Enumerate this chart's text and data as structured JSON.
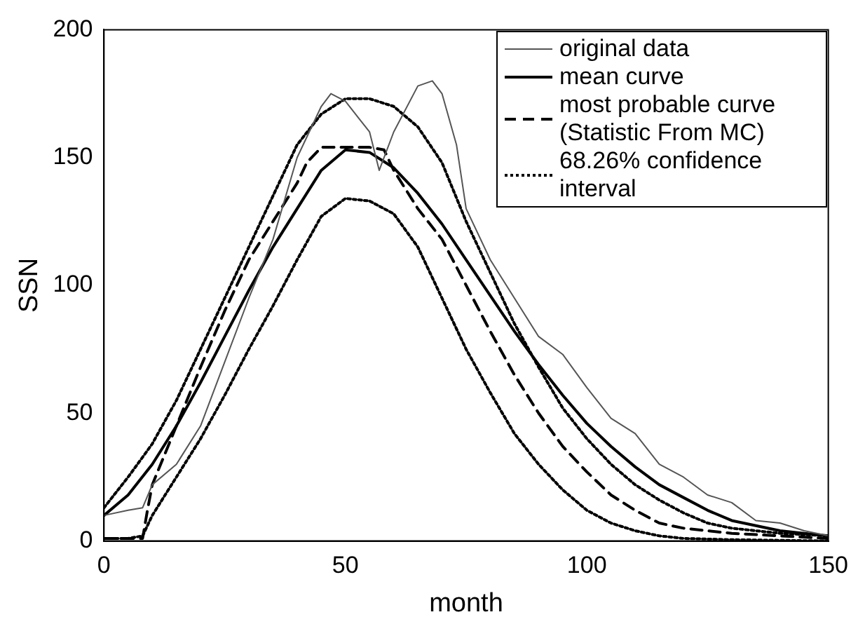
{
  "chart_data": {
    "type": "line",
    "xlabel": "month",
    "ylabel": "SSN",
    "xlim": [
      0,
      150
    ],
    "ylim": [
      0,
      200
    ],
    "xticks": [
      0,
      50,
      100,
      150
    ],
    "yticks": [
      0,
      50,
      100,
      150,
      200
    ],
    "grid": false,
    "legend": "top right",
    "marker": "none",
    "series": [
      {
        "name": "original data",
        "color": "#555555",
        "line_style": "solid",
        "x": [
          0,
          5,
          8,
          10,
          15,
          20,
          25,
          30,
          35,
          40,
          45,
          47,
          50,
          55,
          57,
          60,
          65,
          68,
          70,
          73,
          75,
          80,
          85,
          90,
          95,
          100,
          105,
          110,
          115,
          120,
          125,
          130,
          135,
          140,
          145,
          150
        ],
        "values": [
          10,
          12,
          13,
          22,
          30,
          45,
          70,
          95,
          118,
          150,
          170,
          175,
          172,
          160,
          145,
          160,
          178,
          180,
          175,
          155,
          130,
          110,
          95,
          80,
          73,
          60,
          48,
          42,
          30,
          25,
          18,
          15,
          8,
          7,
          4,
          2
        ]
      },
      {
        "name": "mean curve",
        "color": "#000000",
        "line_style": "solid",
        "x": [
          0,
          5,
          10,
          15,
          20,
          25,
          30,
          35,
          40,
          45,
          50,
          55,
          60,
          65,
          70,
          75,
          80,
          85,
          90,
          95,
          100,
          105,
          110,
          115,
          120,
          125,
          130,
          135,
          140,
          145,
          150
        ],
        "values": [
          10,
          18,
          30,
          45,
          62,
          80,
          98,
          115,
          130,
          145,
          153,
          152,
          146,
          136,
          124,
          110,
          96,
          82,
          69,
          57,
          46,
          37,
          29,
          22,
          17,
          12,
          8,
          6,
          4,
          3,
          2
        ]
      },
      {
        "name": "most probable curve (Statistic From MC)",
        "color": "#000000",
        "line_style": "dashed",
        "x": [
          0,
          8,
          9,
          10,
          15,
          20,
          25,
          30,
          35,
          40,
          42,
          45,
          50,
          55,
          58,
          60,
          65,
          70,
          75,
          80,
          85,
          90,
          95,
          100,
          105,
          110,
          115,
          120,
          130,
          140,
          150
        ],
        "values": [
          1,
          1,
          12,
          22,
          45,
          68,
          90,
          110,
          125,
          140,
          148,
          154,
          154,
          154,
          153,
          145,
          130,
          118,
          100,
          82,
          65,
          50,
          37,
          27,
          18,
          12,
          7,
          5,
          3,
          2,
          1
        ]
      },
      {
        "name": "68.26% confidence interval",
        "color": "#000000",
        "line_style": "dotted",
        "x": [
          0,
          5,
          10,
          15,
          20,
          25,
          30,
          35,
          40,
          45,
          50,
          55,
          60,
          65,
          70,
          75,
          80,
          85,
          90,
          95,
          100,
          105,
          110,
          115,
          120,
          125,
          130,
          140,
          150
        ],
        "values": [
          13,
          25,
          38,
          55,
          75,
          95,
          115,
          135,
          155,
          167,
          173,
          173,
          170,
          162,
          148,
          125,
          105,
          85,
          68,
          52,
          40,
          30,
          22,
          16,
          11,
          7,
          5,
          3,
          2
        ]
      },
      {
        "color": "#000000",
        "line_style": "dotted",
        "x": [
          0,
          5,
          8,
          10,
          15,
          20,
          25,
          30,
          35,
          40,
          45,
          50,
          55,
          60,
          65,
          70,
          75,
          80,
          85,
          90,
          95,
          100,
          105,
          110,
          115,
          120,
          130,
          150
        ],
        "values": [
          1,
          1,
          2,
          10,
          25,
          40,
          57,
          75,
          92,
          110,
          127,
          134,
          133,
          128,
          115,
          95,
          75,
          58,
          42,
          30,
          20,
          12,
          7,
          4,
          2,
          1,
          0.5,
          0
        ]
      }
    ]
  }
}
